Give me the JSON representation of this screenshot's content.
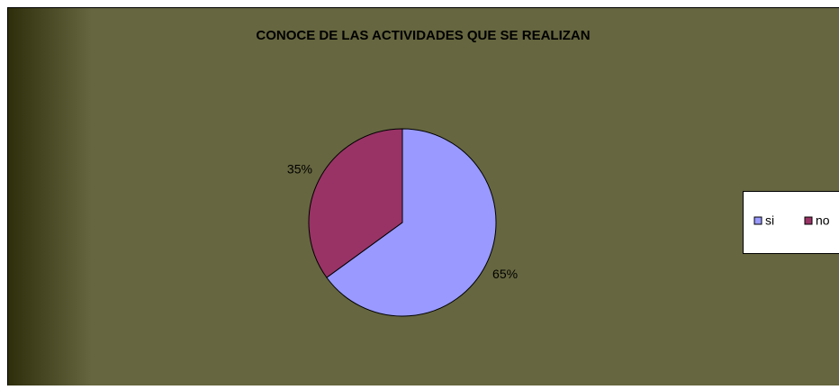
{
  "chart_data": {
    "type": "pie",
    "title": "CONOCE DE LAS ACTIVIDADES QUE SE REALIZAN",
    "categories": [
      "si",
      "no"
    ],
    "values": [
      65,
      35
    ],
    "value_labels": [
      "65%",
      "35%"
    ],
    "colors": [
      "#9999ff",
      "#993366"
    ],
    "legend": "right"
  }
}
